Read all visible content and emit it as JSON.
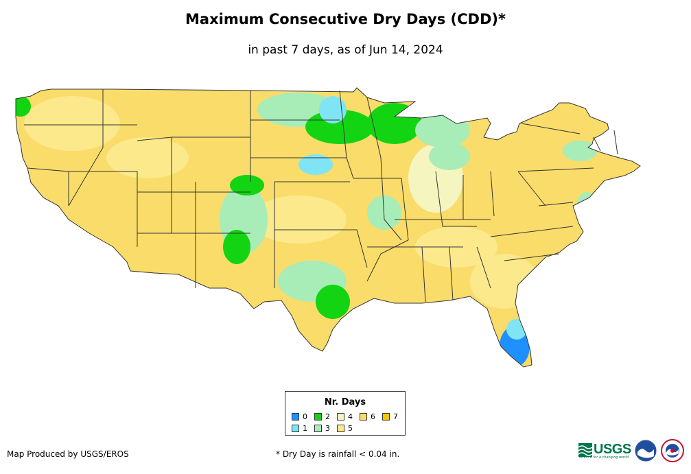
{
  "title": "Maximum Consecutive Dry Days (CDD)*",
  "subtitle": "in past 7 days, as of Jun 14, 2024",
  "legend": {
    "title": "Nr. Days",
    "items": [
      {
        "label": "0",
        "color": "#1e90ff"
      },
      {
        "label": "1",
        "color": "#7fe5f5"
      },
      {
        "label": "2",
        "color": "#12d412"
      },
      {
        "label": "3",
        "color": "#a8ecb8"
      },
      {
        "label": "4",
        "color": "#f5f5c0"
      },
      {
        "label": "5",
        "color": "#fbe98c"
      },
      {
        "label": "6",
        "color": "#fadc6a"
      },
      {
        "label": "7",
        "color": "#ffc400"
      }
    ]
  },
  "credit": "Map Produced by USGS/EROS",
  "footnote": "* Dry Day is rainfall < 0.04 in.",
  "logos": {
    "usgs": "USGS",
    "usgs_tagline": "science for a changing world"
  },
  "colors": {
    "border": "#333333",
    "usgs_green": "#00754a",
    "noaa_blue": "#1f4e9c"
  },
  "icons": [
    "usgs-logo-icon",
    "noaa-logo-icon",
    "nws-logo-icon"
  ]
}
